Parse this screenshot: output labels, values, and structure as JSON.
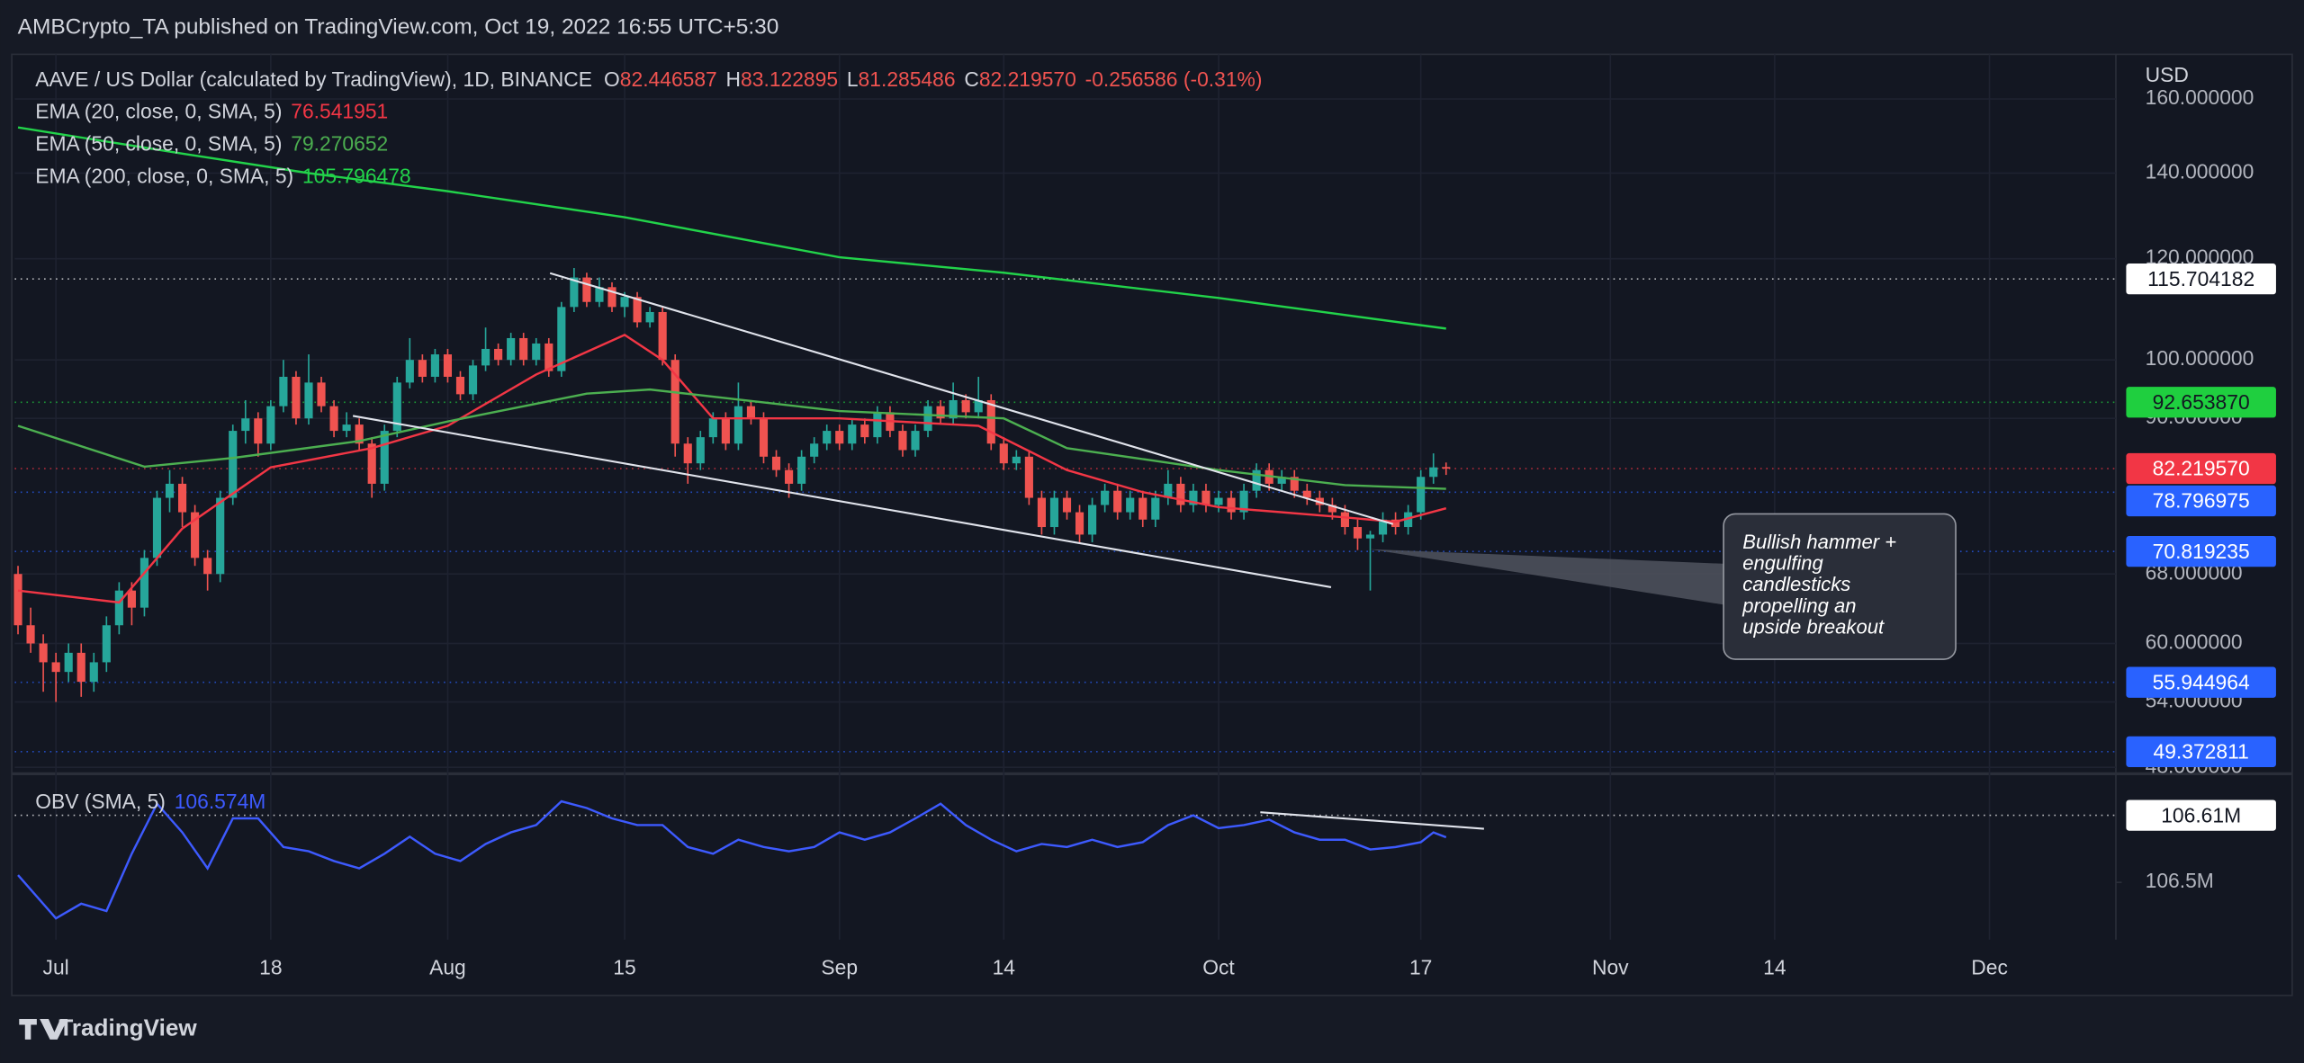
{
  "header": {
    "published": "AMBCrypto_TA published on TradingView.com, Oct 19, 2022 16:55 UTC+5:30"
  },
  "chart_data": [
    {
      "type": "candlestick",
      "title": "AAVE / US Dollar (calculated by TradingView), 1D, BINANCE",
      "legend_ohlc": [
        {
          "key": "O",
          "text": "82.446587"
        },
        {
          "key": "H",
          "text": "83.122895"
        },
        {
          "key": "L",
          "text": "81.285486"
        },
        {
          "key": "C",
          "text": "82.219570"
        }
      ],
      "change": "-0.256586 (-0.31%)",
      "currency": "USD",
      "up_color": "#26a69a",
      "down_color": "#ef5350",
      "log_scale": true,
      "grid": true,
      "xlim": [
        -3.26,
        163
      ],
      "xticks": [
        {
          "value": 0,
          "label": "Jul"
        },
        {
          "value": 17,
          "label": "18"
        },
        {
          "value": 31,
          "label": "Aug"
        },
        {
          "value": 45,
          "label": "15"
        },
        {
          "value": 62,
          "label": "Sep"
        },
        {
          "value": 75,
          "label": "14"
        },
        {
          "value": 92,
          "label": "Oct"
        },
        {
          "value": 108,
          "label": "17"
        },
        {
          "value": 123,
          "label": "Nov"
        },
        {
          "value": 136,
          "label": "14"
        },
        {
          "value": 153,
          "label": "Dec"
        }
      ],
      "ylim": [
        47.7,
        173.4
      ],
      "yticks": [
        {
          "value": 160,
          "label": "160.000000"
        },
        {
          "value": 140,
          "label": "140.000000"
        },
        {
          "value": 120,
          "label": "120.000000"
        },
        {
          "value": 100,
          "label": "100.000000"
        },
        {
          "value": 90,
          "label": "90.000000"
        },
        {
          "value": 68,
          "label": "68.000000"
        },
        {
          "value": 60,
          "label": "60.000000"
        },
        {
          "value": 54,
          "label": "54.000000"
        },
        {
          "value": 48,
          "label": "48.000000"
        }
      ],
      "x": [
        -3,
        -2,
        -1,
        0,
        1,
        2,
        3,
        4,
        5,
        6,
        7,
        8,
        9,
        10,
        11,
        12,
        13,
        14,
        15,
        16,
        17,
        18,
        19,
        20,
        21,
        22,
        23,
        24,
        25,
        26,
        27,
        28,
        29,
        30,
        31,
        32,
        33,
        34,
        35,
        36,
        37,
        38,
        39,
        40,
        41,
        42,
        43,
        44,
        45,
        46,
        47,
        48,
        49,
        50,
        51,
        52,
        53,
        54,
        55,
        56,
        57,
        58,
        59,
        60,
        61,
        62,
        63,
        64,
        65,
        66,
        67,
        68,
        69,
        70,
        71,
        72,
        73,
        74,
        75,
        76,
        77,
        78,
        79,
        80,
        81,
        82,
        83,
        84,
        85,
        86,
        87,
        88,
        89,
        90,
        91,
        92,
        93,
        94,
        95,
        96,
        97,
        98,
        99,
        100,
        101,
        102,
        103,
        104,
        105,
        106,
        107,
        108,
        109,
        110
      ],
      "open": [
        68,
        62,
        60,
        58,
        57,
        59,
        56,
        58,
        62,
        66,
        64,
        70,
        78,
        80,
        76,
        70,
        68,
        78,
        88,
        90,
        86,
        92,
        97,
        90,
        96,
        92,
        88,
        89,
        86,
        80,
        88,
        96,
        100,
        97,
        101,
        97,
        94,
        99,
        102,
        100,
        104,
        100,
        103,
        98,
        110,
        116,
        111,
        114,
        110,
        112,
        107,
        109,
        100,
        86,
        83,
        87,
        90,
        86,
        92,
        90,
        84,
        82,
        80,
        84,
        86,
        88,
        86,
        89,
        87,
        91,
        88,
        85,
        88,
        92,
        90,
        93,
        91,
        93,
        86,
        83,
        84,
        78,
        74,
        78,
        76,
        73,
        77,
        79,
        76,
        78,
        75,
        78,
        80,
        77,
        79,
        77,
        78,
        76,
        79,
        82,
        80,
        81,
        79,
        78,
        77,
        76,
        74,
        72.5,
        73,
        75,
        74,
        76,
        81,
        82.446587
      ],
      "high": [
        69,
        64,
        61,
        59,
        60,
        60,
        59,
        63,
        67,
        67,
        71,
        79,
        82,
        81,
        77,
        71,
        79,
        89,
        93,
        91,
        93,
        100,
        98,
        101,
        97,
        93,
        91,
        90,
        87,
        89,
        97,
        104,
        101,
        102,
        102,
        98,
        100,
        106,
        103,
        105,
        105,
        104,
        104,
        111,
        118,
        117,
        116,
        115,
        113,
        113,
        110,
        110,
        101,
        87,
        88,
        91,
        91,
        96,
        93,
        91,
        85,
        83,
        85,
        87,
        89,
        89,
        90,
        90,
        92,
        92,
        89,
        89,
        93,
        93,
        96,
        94,
        97,
        94,
        87,
        85,
        85,
        79,
        79,
        79,
        77,
        78,
        80,
        80,
        79,
        79,
        79,
        82,
        81,
        80,
        80,
        79,
        79,
        80,
        83,
        83,
        82,
        82,
        80,
        79,
        78,
        77,
        75,
        73.5,
        76,
        76,
        77,
        82,
        84.5,
        83.122895
      ],
      "low": [
        61,
        59,
        55,
        54,
        56,
        54.5,
        55,
        57,
        61,
        62,
        63,
        69,
        76,
        74,
        69,
        66,
        67,
        77,
        86,
        84,
        85,
        91,
        89,
        89,
        91,
        87,
        87,
        85,
        78,
        79,
        87,
        95,
        96,
        96,
        96,
        93,
        93,
        98,
        99,
        99,
        99,
        99,
        97,
        97,
        109,
        110,
        110,
        109,
        108,
        106,
        106,
        99,
        84,
        80,
        82,
        86,
        85,
        85,
        89,
        83,
        81,
        78,
        79,
        83,
        85,
        85,
        85,
        86,
        86,
        87,
        84,
        84,
        87,
        89,
        89,
        90,
        90,
        85,
        82,
        82,
        77,
        73,
        73,
        75,
        72,
        72,
        76,
        75,
        75,
        74,
        74,
        77,
        76,
        76,
        76,
        76,
        75,
        75,
        78,
        79,
        79,
        78,
        77,
        76,
        75,
        73,
        71,
        66,
        72,
        73,
        73,
        75,
        80,
        81.285486
      ],
      "close": [
        62,
        60,
        58,
        57,
        59,
        56,
        58,
        62,
        66,
        64,
        70,
        78,
        80,
        76,
        70,
        68,
        78,
        88,
        90,
        86,
        92,
        97,
        90,
        96,
        92,
        88,
        89,
        86,
        80,
        88,
        96,
        100,
        97,
        101,
        97,
        94,
        99,
        102,
        100,
        104,
        100,
        103,
        98,
        110,
        116,
        111,
        114,
        110,
        112,
        107,
        109,
        100,
        86,
        83,
        87,
        90,
        86,
        92,
        90,
        84,
        82,
        80,
        84,
        86,
        88,
        86,
        89,
        87,
        91,
        88,
        85,
        88,
        92,
        90,
        93,
        91,
        93,
        86,
        83,
        84,
        78,
        74,
        78,
        76,
        73,
        77,
        79,
        76,
        78,
        75,
        78,
        80,
        77,
        79,
        77,
        78,
        76,
        79,
        82,
        80,
        81,
        79,
        78,
        77,
        76,
        74,
        72.5,
        73,
        75,
        74,
        76,
        81,
        82.4,
        82.21957
      ],
      "series": [
        {
          "name": "EMA (20, close, 0, SMA, 5)",
          "color": "#f23645",
          "x": [
            -3,
            5,
            10,
            17,
            25,
            31,
            38,
            45,
            48,
            52,
            62,
            73,
            80,
            86,
            92,
            102,
            106,
            110
          ],
          "values": [
            66,
            64.6,
            73.8,
            82.4,
            85.3,
            88.8,
            97.4,
            104.6,
            100,
            90,
            90,
            88.8,
            82,
            78.8,
            76.7,
            75.3,
            74.7,
            76.541951
          ]
        },
        {
          "name": "EMA (50, close, 0, SMA, 5)",
          "color": "#4caf50",
          "x": [
            -3,
            7,
            14,
            24,
            31,
            42,
            47,
            62,
            75,
            80,
            92,
            102,
            110
          ],
          "values": [
            88.8,
            82.5,
            83.8,
            86.4,
            89.5,
            94.1,
            94.8,
            91.2,
            90,
            85.3,
            82,
            79.8,
            79.270652
          ]
        },
        {
          "name": "EMA (200, close, 0, SMA, 5)",
          "color": "#22d34a",
          "x": [
            -3,
            10,
            20,
            31,
            45,
            62,
            75,
            92,
            100,
            110
          ],
          "values": [
            152,
            145,
            140,
            135.5,
            129.3,
            120.3,
            117,
            111.8,
            109.1,
            105.796478
          ]
        }
      ],
      "levels": [
        {
          "value": 115.704182,
          "color": "#ffffff",
          "text_color": "#131722"
        },
        {
          "value": 92.65387,
          "label": "92.653870",
          "color": "#1fcf3f",
          "text_color": "#131722"
        },
        {
          "value": 82.21957,
          "label": "82.219570",
          "color": "#f23645",
          "text_color": "#ffffff"
        },
        {
          "value": 78.796975,
          "color": "#2962ff",
          "text_color": "#ffffff"
        },
        {
          "value": 70.819235,
          "color": "#2962ff",
          "text_color": "#ffffff"
        },
        {
          "value": 55.944964,
          "color": "#2962ff",
          "text_color": "#ffffff"
        },
        {
          "value": 49.372811,
          "color": "#2962ff",
          "text_color": "#ffffff"
        }
      ],
      "trendlines": [
        {
          "x": [
            39.1,
            105.8
          ],
          "values": [
            116.9,
            74.4
          ]
        },
        {
          "x": [
            23.5,
            100.9
          ],
          "values": [
            90.4,
            66.4
          ]
        }
      ],
      "annotation": {
        "lines": [
          "Bullish hammer +",
          "engulfing",
          "candlesticks",
          "propelling an",
          "upside breakout"
        ]
      }
    },
    {
      "type": "line",
      "ylim": [
        106.406,
        106.671
      ],
      "yticks": [
        {
          "value": 106.5,
          "label": "106.5M"
        }
      ],
      "series": [
        {
          "name": "OBV (SMA, 5)",
          "color": "#3d5afe",
          "last_label": "106.574M",
          "x": [
            -3,
            0,
            2,
            4,
            6,
            8,
            10,
            12,
            14,
            16,
            18,
            20,
            22,
            24,
            26,
            28,
            30,
            32,
            34,
            36,
            38,
            40,
            42,
            44,
            46,
            48,
            50,
            52,
            54,
            56,
            58,
            60,
            62,
            64,
            66,
            68,
            70,
            72,
            74,
            76,
            78,
            80,
            82,
            84,
            86,
            88,
            90,
            92,
            94,
            96,
            98,
            100,
            102,
            104,
            106,
            108,
            109,
            110
          ],
          "values": [
            106.512,
            106.441,
            106.465,
            106.453,
            106.547,
            106.629,
            106.582,
            106.523,
            106.605,
            106.605,
            106.558,
            106.551,
            106.535,
            106.523,
            106.547,
            106.575,
            106.547,
            106.535,
            106.563,
            106.582,
            106.594,
            106.633,
            106.622,
            106.605,
            106.594,
            106.594,
            106.558,
            106.547,
            106.57,
            106.558,
            106.551,
            106.558,
            106.582,
            106.57,
            106.582,
            106.605,
            106.629,
            106.594,
            106.57,
            106.551,
            106.563,
            106.558,
            106.57,
            106.558,
            106.566,
            106.594,
            106.61,
            106.589,
            106.594,
            106.603,
            106.582,
            106.57,
            106.57,
            106.554,
            106.558,
            106.566,
            106.582,
            106.574
          ]
        }
      ],
      "levels": [
        {
          "value": 106.61,
          "label": "106.61M",
          "color": "#ffffff",
          "text_color": "#131722"
        }
      ],
      "trendlines": [
        {
          "x": [
            95.3,
            113
          ],
          "values": [
            106.615,
            106.588
          ]
        }
      ]
    }
  ],
  "footer": {
    "brand": "TradingView"
  }
}
